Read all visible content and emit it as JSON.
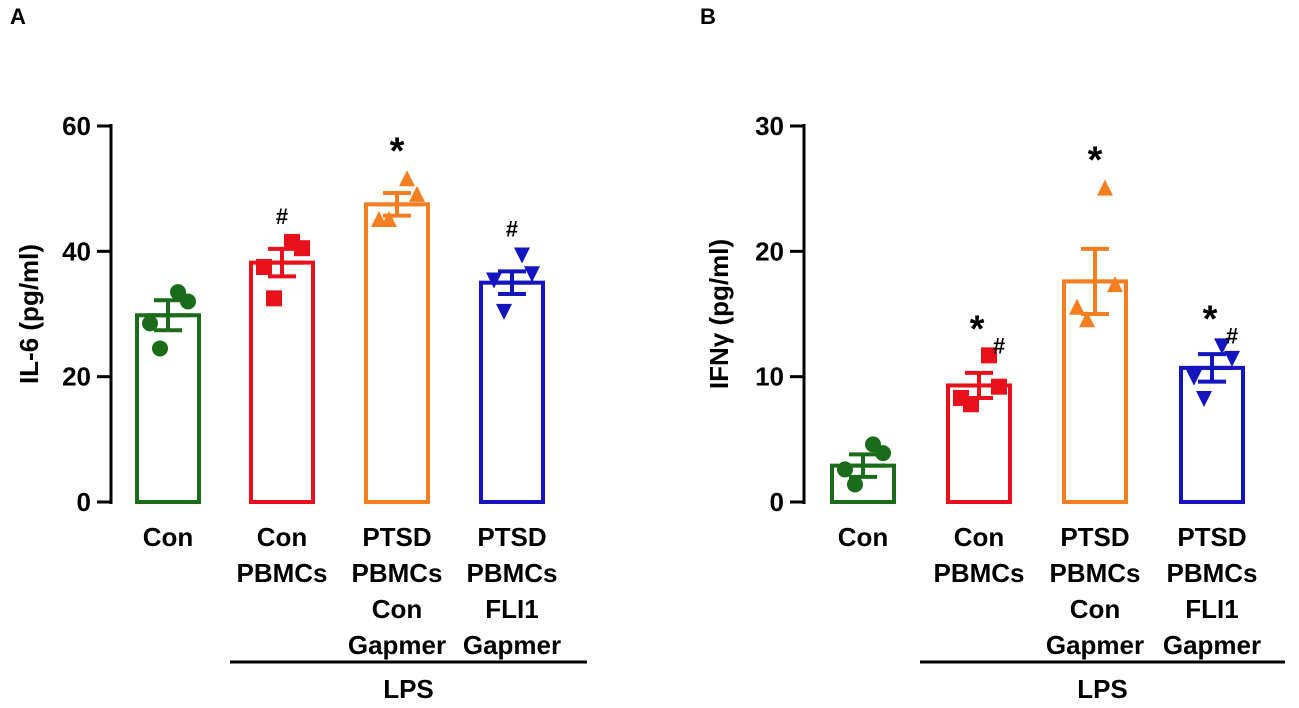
{
  "chart_data": [
    {
      "type": "bar",
      "panel_label": "A",
      "ylabel": "IL-6 (pg/ml)",
      "ylim": [
        0,
        60
      ],
      "yticks": [
        0,
        20,
        40,
        60
      ],
      "group_label": "LPS",
      "categories": [
        {
          "lines": [
            "Con"
          ]
        },
        {
          "lines": [
            "Con",
            "PBMCs"
          ]
        },
        {
          "lines": [
            "PTSD",
            "PBMCs",
            "Con",
            "Gapmer"
          ]
        },
        {
          "lines": [
            "PTSD",
            "PBMCs",
            "FLI1",
            "Gapmer"
          ]
        }
      ],
      "bars": [
        {
          "mean": 29.8,
          "sem": 2.4,
          "color": "#1a6b1a",
          "marker": "circle",
          "points": [
            33.5,
            32,
            28.5,
            24.5
          ],
          "sig": "",
          "hash": ""
        },
        {
          "mean": 38.2,
          "sem": 2.2,
          "color": "#e8101a",
          "marker": "square",
          "points": [
            41.5,
            40.5,
            37.5,
            32.5
          ],
          "sig": "",
          "hash": "#"
        },
        {
          "mean": 47.5,
          "sem": 1.8,
          "color": "#f57e20",
          "marker": "triangle-up",
          "points": [
            51.5,
            49,
            45,
            45
          ],
          "sig": "*",
          "hash": ""
        },
        {
          "mean": 35.0,
          "sem": 1.8,
          "color": "#1515c0",
          "marker": "triangle-down",
          "points": [
            39.5,
            36.5,
            35.5,
            30.5
          ],
          "sig": "",
          "hash": "#"
        }
      ]
    },
    {
      "type": "bar",
      "panel_label": "B",
      "ylabel": "IFNγ (pg/ml)",
      "ylim": [
        0,
        30
      ],
      "yticks": [
        0,
        10,
        20,
        30
      ],
      "group_label": "LPS",
      "categories": [
        {
          "lines": [
            "Con"
          ]
        },
        {
          "lines": [
            "Con",
            "PBMCs"
          ]
        },
        {
          "lines": [
            "PTSD",
            "PBMCs",
            "Con",
            "Gapmer"
          ]
        },
        {
          "lines": [
            "PTSD",
            "PBMCs",
            "FLI1",
            "Gapmer"
          ]
        }
      ],
      "bars": [
        {
          "mean": 2.9,
          "sem": 0.9,
          "color": "#1a6b1a",
          "marker": "circle",
          "points": [
            4.6,
            3.9,
            2.6,
            1.4
          ],
          "sig": "",
          "hash": ""
        },
        {
          "mean": 9.3,
          "sem": 1.0,
          "color": "#e8101a",
          "marker": "square",
          "points": [
            11.7,
            9.2,
            8.3,
            7.8
          ],
          "sig": "*",
          "hash": "#"
        },
        {
          "mean": 17.6,
          "sem": 2.6,
          "color": "#f57e20",
          "marker": "triangle-up",
          "points": [
            25.0,
            17.3,
            15.5,
            14.5
          ],
          "sig": "*",
          "hash": ""
        },
        {
          "mean": 10.7,
          "sem": 1.1,
          "color": "#1515c0",
          "marker": "triangle-down",
          "points": [
            12.5,
            11.5,
            10.0,
            8.3
          ],
          "sig": "*",
          "hash": "#"
        }
      ]
    }
  ]
}
